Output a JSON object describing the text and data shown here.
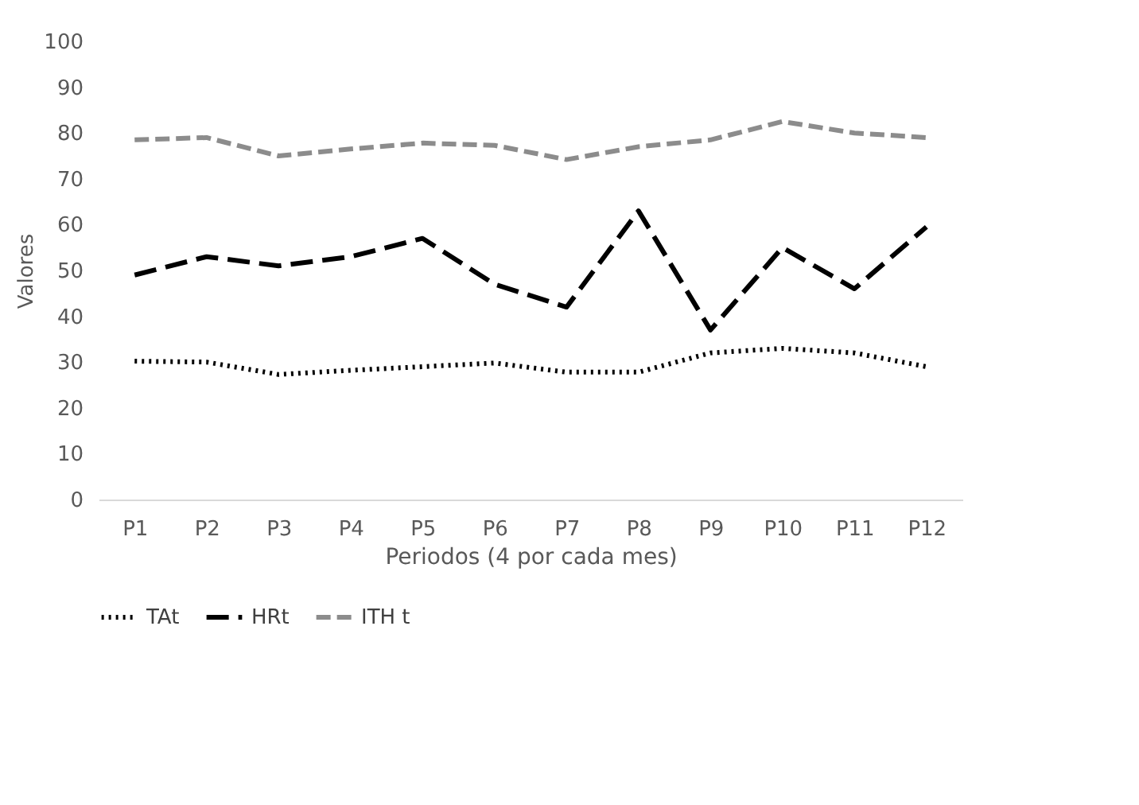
{
  "chart_data": {
    "type": "line",
    "xlabel": "Periodos (4 por cada mes)",
    "ylabel": "Valores",
    "categories": [
      "P1",
      "P2",
      "P3",
      "P4",
      "P5",
      "P6",
      "P7",
      "P8",
      "P9",
      "P10",
      "P11",
      "P12"
    ],
    "series": [
      {
        "name": "TAt",
        "color": "#000000",
        "line_style": "dotted",
        "values": [
          30.2,
          30,
          27.3,
          28.2,
          29,
          29.8,
          27.8,
          27.8,
          32,
          33,
          32,
          29
        ]
      },
      {
        "name": "HRt",
        "color": "#000000",
        "line_style": "dashed",
        "values": [
          49,
          53,
          51,
          53,
          57,
          47,
          42,
          63,
          37,
          55,
          46,
          59.5
        ]
      },
      {
        "name": "ITH t",
        "color": "#8c8c8c",
        "line_style": "dashed",
        "values": [
          78.5,
          79,
          75,
          76.5,
          77.8,
          77.3,
          74.2,
          77,
          78.5,
          82.5,
          80,
          79
        ]
      }
    ],
    "ylim": [
      0,
      100
    ],
    "yticks": [
      0,
      10,
      20,
      30,
      40,
      50,
      60,
      70,
      80,
      90,
      100
    ],
    "grid": false,
    "legend": "bottom",
    "marker": "none"
  }
}
